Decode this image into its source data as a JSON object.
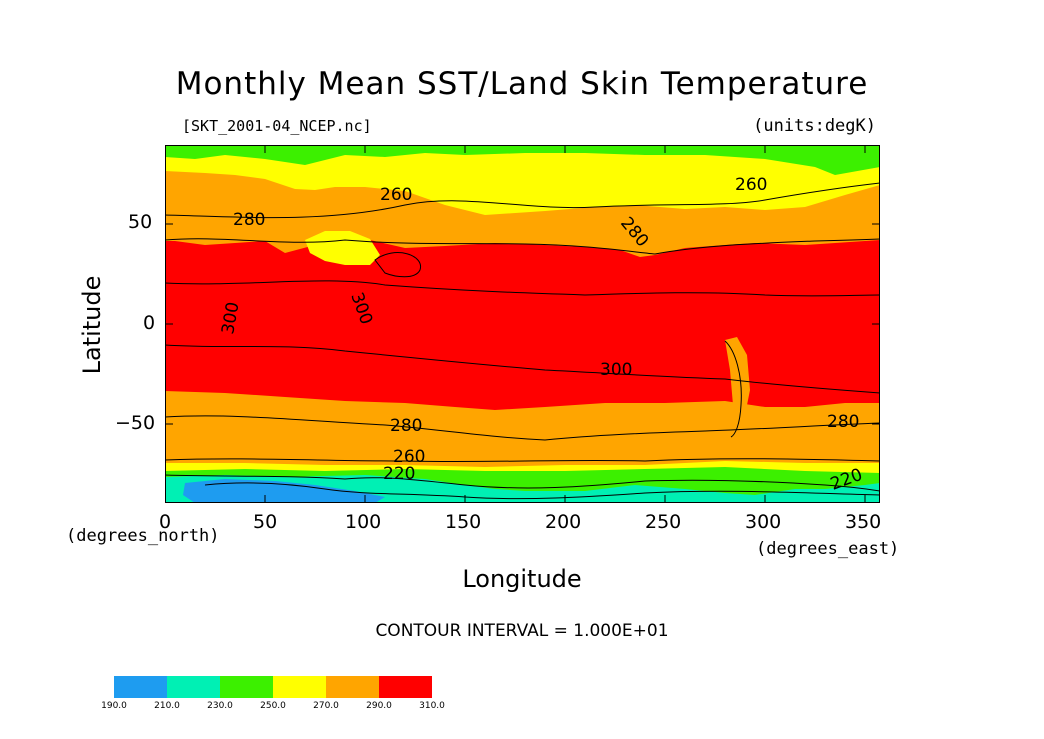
{
  "title": "Monthly Mean SST/Land Skin Temperature",
  "file_label": "[SKT_2001-04_NCEP.nc]",
  "units_label": "(units:degK)",
  "y_axis": {
    "label": "Latitude",
    "unit_label": "(degrees_north)",
    "ticks": [
      "50",
      "0",
      "−50"
    ]
  },
  "x_axis": {
    "label": "Longitude",
    "unit_label": "(degrees_east)",
    "ticks": [
      "0",
      "50",
      "100",
      "150",
      "200",
      "250",
      "300",
      "350"
    ]
  },
  "contour_interval_text": "CONTOUR INTERVAL = 1.000E+01",
  "contour_labels": [
    "260",
    "280",
    "280",
    "300",
    "300",
    "300",
    "280",
    "280",
    "260",
    "220",
    "260",
    "220"
  ],
  "legend": {
    "ticks": [
      "190.0",
      "210.0",
      "230.0",
      "250.0",
      "270.0",
      "290.0",
      "310.0"
    ],
    "colors": [
      "#1e9cf0",
      "#00f0b4",
      "#3cf000",
      "#ffff00",
      "#ffa500",
      "#ff0000"
    ]
  },
  "colors": {
    "band_190_210": "#1e9cf0",
    "band_210_230": "#00f0b4",
    "band_230_250": "#3cf000",
    "band_250_270": "#ffff00",
    "band_270_290": "#ffa500",
    "band_290_310": "#ff0000"
  }
}
